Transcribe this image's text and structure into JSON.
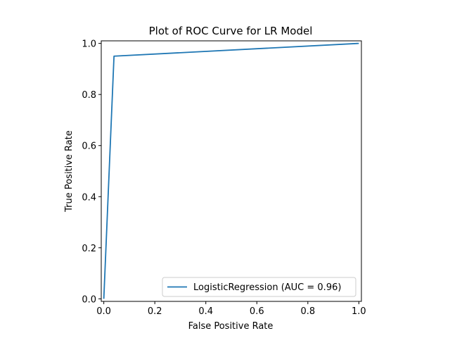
{
  "chart_data": {
    "type": "line",
    "title": "Plot of ROC Curve for LR Model",
    "xlabel": "False Positive Rate",
    "ylabel": "True Positive Rate",
    "xlim": [
      -0.01,
      1.01
    ],
    "ylim": [
      -0.01,
      1.01
    ],
    "xticks": [
      0.0,
      0.2,
      0.4,
      0.6,
      0.8,
      1.0
    ],
    "xtick_labels": [
      "0.0",
      "0.2",
      "0.4",
      "0.6",
      "0.8",
      "1.0"
    ],
    "yticks": [
      0.0,
      0.2,
      0.4,
      0.6,
      0.8,
      1.0
    ],
    "ytick_labels": [
      "0.0",
      "0.2",
      "0.4",
      "0.6",
      "0.8",
      "1.0"
    ],
    "grid": false,
    "legend_position": "lower-right",
    "series": [
      {
        "name": "LogisticRegression (AUC = 0.96)",
        "color": "#1f77b4",
        "x": [
          0.0,
          0.04,
          1.0
        ],
        "y": [
          0.0,
          0.95,
          1.0
        ]
      }
    ]
  }
}
